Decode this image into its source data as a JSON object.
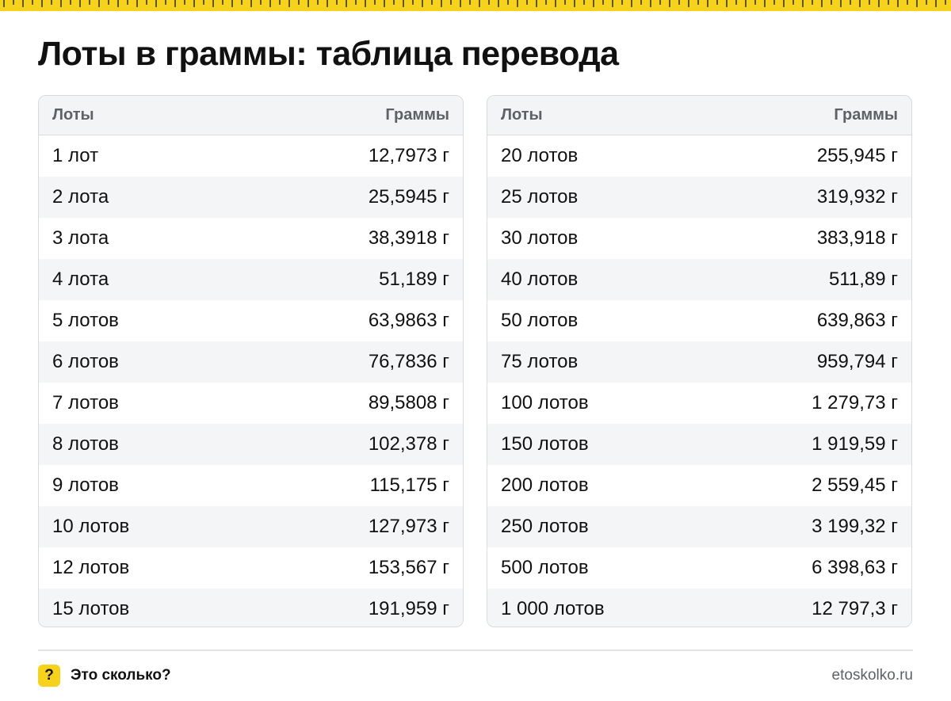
{
  "title": "Лоты в граммы: таблица перевода",
  "colors": {
    "accent": "#f7d21a",
    "header_bg": "#f3f4f6",
    "stripe_bg": "#f4f5f7",
    "border": "#d9dadc",
    "muted_text": "#5e6166"
  },
  "tables": [
    {
      "header": {
        "col1": "Лоты",
        "col2": "Граммы"
      },
      "rows": [
        {
          "lots": "1 лот",
          "grams": "12,7973 г"
        },
        {
          "lots": "2 лота",
          "grams": "25,5945 г"
        },
        {
          "lots": "3 лота",
          "grams": "38,3918 г"
        },
        {
          "lots": "4 лота",
          "grams": "51,189 г"
        },
        {
          "lots": "5 лотов",
          "grams": "63,9863 г"
        },
        {
          "lots": "6 лотов",
          "grams": "76,7836 г"
        },
        {
          "lots": "7 лотов",
          "grams": "89,5808 г"
        },
        {
          "lots": "8 лотов",
          "grams": "102,378 г"
        },
        {
          "lots": "9 лотов",
          "grams": "115,175 г"
        },
        {
          "lots": "10 лотов",
          "grams": "127,973 г"
        },
        {
          "lots": "12 лотов",
          "grams": "153,567 г"
        },
        {
          "lots": "15 лотов",
          "grams": "191,959 г"
        }
      ]
    },
    {
      "header": {
        "col1": "Лоты",
        "col2": "Граммы"
      },
      "rows": [
        {
          "lots": "20 лотов",
          "grams": "255,945 г"
        },
        {
          "lots": "25 лотов",
          "grams": "319,932 г"
        },
        {
          "lots": "30 лотов",
          "grams": "383,918 г"
        },
        {
          "lots": "40 лотов",
          "grams": "511,89 г"
        },
        {
          "lots": "50 лотов",
          "grams": "639,863 г"
        },
        {
          "lots": "75 лотов",
          "grams": "959,794 г"
        },
        {
          "lots": "100 лотов",
          "grams": "1 279,73 г"
        },
        {
          "lots": "150 лотов",
          "grams": "1 919,59 г"
        },
        {
          "lots": "200 лотов",
          "grams": "2 559,45 г"
        },
        {
          "lots": "250 лотов",
          "grams": "3 199,32 г"
        },
        {
          "lots": "500 лотов",
          "grams": "6 398,63 г"
        },
        {
          "lots": "1 000 лотов",
          "grams": "12 797,3 г"
        }
      ]
    }
  ],
  "footer": {
    "icon": "question-mark-icon",
    "icon_glyph": "?",
    "brand": "Это сколько?",
    "site": "etoskolko.ru"
  }
}
